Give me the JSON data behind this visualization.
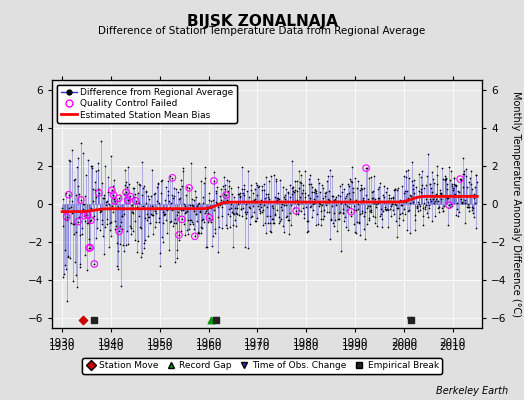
{
  "title": "BIJSK ZONALNAJA",
  "subtitle": "Difference of Station Temperature Data from Regional Average",
  "ylabel": "Monthly Temperature Anomaly Difference (°C)",
  "xlabel_ticks": [
    1930,
    1940,
    1950,
    1960,
    1970,
    1980,
    1990,
    2000,
    2010
  ],
  "ylim": [
    -6.5,
    6.5
  ],
  "xlim": [
    1928,
    2016
  ],
  "yticks": [
    -6,
    -4,
    -2,
    0,
    2,
    4,
    6
  ],
  "line_color": "#3333cc",
  "marker_color": "#000000",
  "qc_color": "#ff00ff",
  "bias_color": "#ff0000",
  "background_color": "#e0e0e0",
  "plot_bg_color": "#e8e8e8",
  "station_move_color": "#cc0000",
  "record_gap_color": "#009900",
  "tobs_color": "#3333cc",
  "empirical_color": "#222222",
  "watermark": "Berkeley Earth",
  "station_moves": [
    1934.2
  ],
  "record_gaps": [
    1960.5
  ],
  "tobs_changes": [
    1961.5,
    2001.2
  ],
  "empirical_breaks": [
    1936.5,
    1961.5,
    2001.5
  ],
  "seed": 7
}
